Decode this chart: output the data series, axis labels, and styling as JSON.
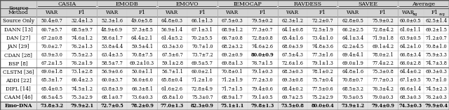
{
  "header_row1": [
    "Source",
    "CASIA",
    "",
    "EMODB",
    "",
    "EMOVO",
    "",
    "IEMOCAP",
    "",
    "RAVDESS",
    "",
    "SAVEE",
    "",
    "Average",
    ""
  ],
  "header_row2": [
    "Method",
    "WAR",
    "F1",
    "WAR",
    "F1",
    "WAR",
    "F1",
    "WAR",
    "F1",
    "WAR",
    "F1",
    "WAR",
    "F1",
    "WARwg",
    "F1avg"
  ],
  "rows": [
    [
      "Source Only",
      "50.4±0.7",
      "32.4±1.3",
      "52.3±1.6",
      "49.0±5.8",
      "64.8±0.3",
      "66.1±1.3",
      "67.5±0.3",
      "79.5±0.2",
      "62.3±1.2",
      "72.2±0.7",
      "62.8±0.5",
      "75.9±0.2",
      "60.0±0.5",
      "62.5±1.4"
    ],
    [
      "DANN [13]",
      "60.7±5.7",
      "68.5±9.7",
      "48.9±6.9",
      "57.3±8.5",
      "56.9±1.4",
      "67.1±3.1",
      "68.9±1.2",
      "77.3±0.7",
      "64.1±0.8",
      "72.5±1.9",
      "66.2±2.5",
      "72.8±4.2",
      "61.0±1.1",
      "69.2±1.5"
    ],
    [
      "DAN [27]",
      "67.2±0.8",
      "74.6±1.2",
      "58.6±1.7",
      "64.4±2.1",
      "61.4±5.2",
      "70.2±5.5",
      "66.7±0.8",
      "72.8±0.8",
      "65.4±1.6",
      "73.4±1.0",
      "64.1±3.4",
      "71.9±1.8",
      "63.9±0.5",
      "71.2±0.7"
    ],
    [
      "JAN [29]",
      "70.0±2.7",
      "76.2±1.3",
      "53.8±4.4",
      "59.5±4.1",
      "63.3±3.0",
      "70.7±1.0",
      "68.2±3.2",
      "74.6±2.6",
      "68.0±3.9",
      "74.8±3.6",
      "62.2±4.5",
      "69.1±4.2",
      "64.2±1.0",
      "70.8±1.0"
    ],
    [
      "CDAN [28]",
      "63.9±3.0",
      "75.5±2.3",
      "63.4±3.5",
      "70.8±7.5",
      "67.5±6.7",
      "73.7±7.2",
      "69.2±0.9",
      "80.0±0.9",
      "67.5±4.3",
      "77.3±1.6",
      "69.4±4.1",
      "78.0±2.1",
      "66.8±3.4",
      "75.9±3.3"
    ],
    [
      "BSP [8]",
      "67.2±1.5",
      "76.2±1.9",
      "58.5±7.7",
      "69.2±10.3",
      "59.1±2.8",
      "69.5±5.7",
      "69.8±1.3",
      "76.7±1.5",
      "72.6±1.6",
      "79.1±1.3",
      "69.0±1.9",
      "77.4±2.2",
      "66.0±2.8",
      "74.7±3.8"
    ],
    [
      "CLSTM [36]",
      "69.0±1.8",
      "73.1±2.8",
      "56.9±0.6",
      "50.0±1.1",
      "56.7±1.1",
      "60.0±2.1",
      "70.8±0.1",
      "79.1±0.3",
      "68.3±0.3",
      "78.1±0.2",
      "64.8±1.6",
      "75.3±0.8",
      "64.4±0.2",
      "69.3±0.3"
    ],
    [
      "ADDI [22]",
      "65.3±1.7",
      "66.4±2.3",
      "60.0±3.7",
      "56.0±6.0",
      "65.8±0.4",
      "71.2±1.0",
      "71.2±1.9",
      "77.2±3.0",
      "69.3±0.8",
      "75.7±0.4",
      "70.8±0.7",
      "77.7±0.3",
      "67.1±0.5",
      "70.7±1.0"
    ],
    [
      "DIFL [14]",
      "65.4±0.5",
      "74.5±1.2",
      "63.8±3.9",
      "66.3±8.1",
      "61.6±2.6",
      "72.8±4.9",
      "71.7±1.5",
      "79.4±0.6",
      "68.4±0.2",
      "77.5±0.6",
      "68.5±3.2",
      "76.3±4.2",
      "66.6±1.4",
      "74.5±2.3"
    ],
    [
      "CAAM [46]",
      "66.5±4.5",
      "75.3±2.9",
      "68.1±0.7",
      "73.6±0.3",
      "65.8±1.0",
      "75.3±0.7",
      "68.9±1.7",
      "79.1±0.5",
      "69.7±2.5",
      "75.2±2.9",
      "70.5±0.5",
      "79.0±0.3",
      "68.3±0.3",
      "76.2±0.3"
    ],
    [
      "Emo-DNA",
      "73.8±3.2",
      "79.9±2.1",
      "72.7±0.5",
      "78.2±0.9",
      "77.0±1.3",
      "82.3±0.9",
      "75.1±1.1",
      "79.8±1.3",
      "73.5±0.8",
      "80.0±0.4",
      "73.9±1.2",
      "79.4±0.9",
      "74.3±0.3",
      "79.9±0.4"
    ]
  ],
  "bold_data": [
    [
      4,
      8
    ],
    [
      10,
      1
    ],
    [
      10,
      2
    ],
    [
      10,
      3
    ],
    [
      10,
      4
    ],
    [
      10,
      5
    ],
    [
      10,
      6
    ],
    [
      10,
      7
    ],
    [
      10,
      8
    ],
    [
      10,
      9
    ],
    [
      10,
      10
    ],
    [
      10,
      11
    ],
    [
      10,
      12
    ],
    [
      10,
      13
    ],
    [
      10,
      14
    ]
  ],
  "group_labels": [
    "CASIA",
    "EMODB",
    "EMOVO",
    "IEMOCAP",
    "RAVDESS",
    "SAVEE",
    "Average"
  ],
  "group_col_starts": [
    1,
    3,
    5,
    7,
    9,
    11,
    13
  ],
  "header_bg": "#d3d3d3",
  "source_only_bg": "#f0f0f0",
  "emodna_bg": "#e0e0e0",
  "normal_bg": "#ffffff",
  "line_color": "#aaaaaa",
  "sep_line_color": "#555555"
}
